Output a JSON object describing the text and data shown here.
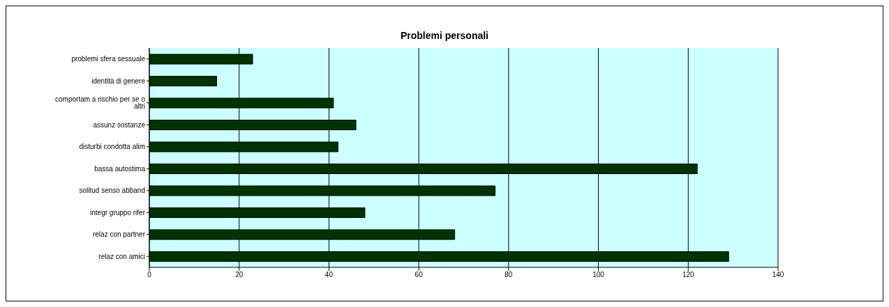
{
  "chart_data": {
    "type": "bar",
    "orientation": "horizontal",
    "title": "Problemi personali",
    "categories": [
      "problemi sfera sessuale",
      "identità di genere",
      "comportam a rischio per se o altri",
      "assunz sostanze",
      "disturbi condotta alim",
      "bassa autostima",
      "solitud senso abband",
      "integr gruppo rifer",
      "relaz con partner",
      "relaz con amici"
    ],
    "values": [
      23,
      15,
      41,
      46,
      42,
      122,
      77,
      48,
      68,
      129
    ],
    "color": "#003300",
    "xlim": [
      0,
      140
    ],
    "xticks": [
      0,
      20,
      40,
      60,
      80,
      100,
      120,
      140
    ],
    "grid": "x"
  }
}
